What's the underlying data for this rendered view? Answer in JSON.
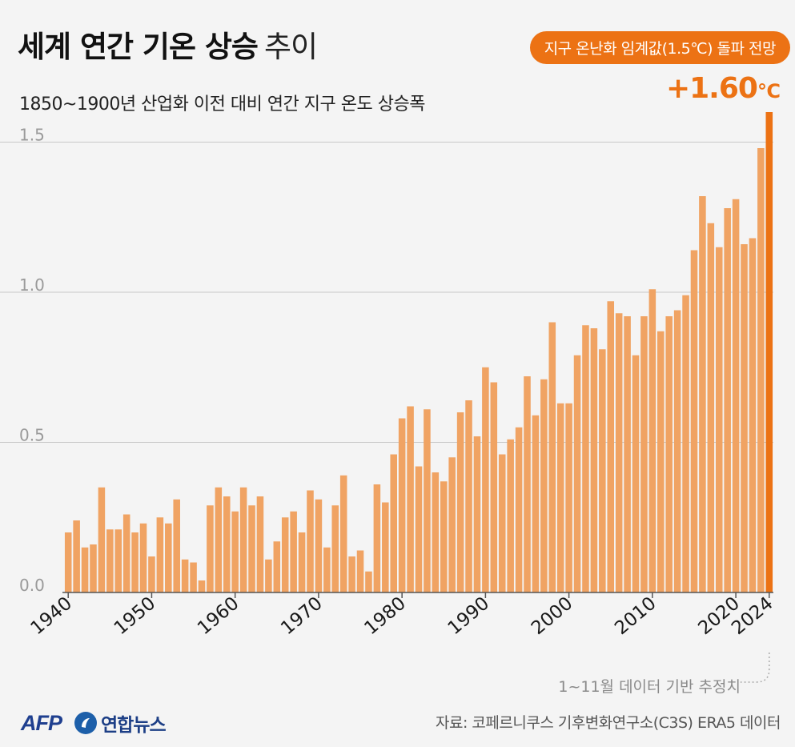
{
  "title": {
    "main": "세계 연간 기온 상승",
    "suffix": "추이"
  },
  "subtitle": "1850~1900년 산업화 이전 대비 연간 지구 온도 상승폭",
  "badge": "지구 온난화 임계값(1.5℃) 돌파 전망",
  "highlight": {
    "value": "+1.60",
    "unit": "℃"
  },
  "note": "1~11월 데이터 기반 추정치",
  "footer": {
    "afp_logo": "AFP",
    "yonhap_logo": "연합뉴스",
    "source": "자료: 코페르니쿠스 기후변화연구소(C3S) ERA5 데이터"
  },
  "colors": {
    "bar": "#f0a363",
    "highlight": "#ec7214",
    "grid": "#c8c8c8",
    "axis": "#555555"
  },
  "chart_data": {
    "type": "bar",
    "ylim": [
      0,
      1.6
    ],
    "y_ticks": [
      "0.0",
      "0.5",
      "1.0",
      "1.5"
    ],
    "x_ticks": [
      "1940",
      "1950",
      "1960",
      "1970",
      "1980",
      "1990",
      "2000",
      "2010",
      "2020",
      "2024"
    ],
    "grid": true,
    "highlighted_year": 2024,
    "x": [
      1940,
      1941,
      1942,
      1943,
      1944,
      1945,
      1946,
      1947,
      1948,
      1949,
      1950,
      1951,
      1952,
      1953,
      1954,
      1955,
      1956,
      1957,
      1958,
      1959,
      1960,
      1961,
      1962,
      1963,
      1964,
      1965,
      1966,
      1967,
      1968,
      1969,
      1970,
      1971,
      1972,
      1973,
      1974,
      1975,
      1976,
      1977,
      1978,
      1979,
      1980,
      1981,
      1982,
      1983,
      1984,
      1985,
      1986,
      1987,
      1988,
      1989,
      1990,
      1991,
      1992,
      1993,
      1994,
      1995,
      1996,
      1997,
      1998,
      1999,
      2000,
      2001,
      2002,
      2003,
      2004,
      2005,
      2006,
      2007,
      2008,
      2009,
      2010,
      2011,
      2012,
      2013,
      2014,
      2015,
      2016,
      2017,
      2018,
      2019,
      2020,
      2021,
      2022,
      2023,
      2024
    ],
    "values": [
      0.2,
      0.24,
      0.15,
      0.16,
      0.35,
      0.21,
      0.21,
      0.26,
      0.2,
      0.23,
      0.12,
      0.25,
      0.23,
      0.31,
      0.11,
      0.1,
      0.04,
      0.29,
      0.35,
      0.32,
      0.27,
      0.35,
      0.29,
      0.32,
      0.11,
      0.17,
      0.25,
      0.27,
      0.2,
      0.34,
      0.31,
      0.15,
      0.29,
      0.39,
      0.12,
      0.14,
      0.07,
      0.36,
      0.3,
      0.46,
      0.58,
      0.62,
      0.42,
      0.61,
      0.4,
      0.37,
      0.45,
      0.6,
      0.64,
      0.52,
      0.75,
      0.7,
      0.46,
      0.51,
      0.55,
      0.72,
      0.59,
      0.71,
      0.9,
      0.63,
      0.63,
      0.79,
      0.89,
      0.88,
      0.81,
      0.97,
      0.93,
      0.92,
      0.79,
      0.92,
      1.01,
      0.87,
      0.92,
      0.94,
      0.99,
      1.14,
      1.32,
      1.23,
      1.15,
      1.28,
      1.31,
      1.16,
      1.18,
      1.48,
      1.6
    ]
  }
}
